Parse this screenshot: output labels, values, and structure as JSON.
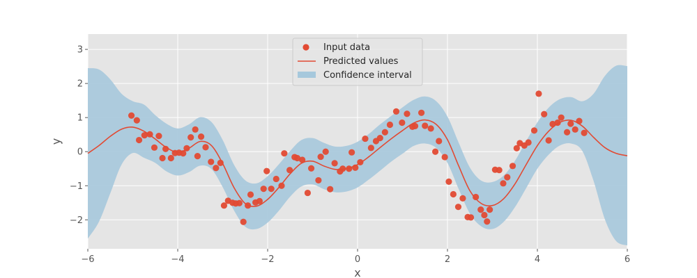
{
  "chart_data": {
    "type": "scatter",
    "title": "",
    "xlabel": "x",
    "ylabel": "y",
    "xlim": [
      -6,
      6
    ],
    "ylim": [
      -2.85,
      3.45
    ],
    "xticks": [
      -6,
      -4,
      -2,
      0,
      2,
      4,
      6
    ],
    "xtick_labels": [
      "−6",
      "−4",
      "−2",
      "0",
      "2",
      "4",
      "6"
    ],
    "yticks": [
      -2,
      -1,
      0,
      1,
      2,
      3
    ],
    "ytick_labels": [
      "−2",
      "−1",
      "0",
      "1",
      "2",
      "3"
    ],
    "grid": true,
    "legend_position": "top-center",
    "colors": {
      "background": "#e5e5e5",
      "grid": "#ffffff",
      "line": "#e24a33",
      "points": "#e24a33",
      "band": "#a6c8dc"
    },
    "series": [
      {
        "name": "Input data",
        "kind": "scatter",
        "x": [
          -5.03,
          -4.91,
          -4.86,
          -4.74,
          -4.62,
          -4.52,
          -4.42,
          -4.34,
          -4.27,
          -4.15,
          -4.06,
          -3.97,
          -3.88,
          -3.8,
          -3.71,
          -3.61,
          -3.56,
          -3.48,
          -3.38,
          -3.26,
          -3.15,
          -3.05,
          -2.97,
          -2.88,
          -2.78,
          -2.71,
          -2.63,
          -2.54,
          -2.44,
          -2.38,
          -2.27,
          -2.18,
          -2.09,
          -2.02,
          -1.92,
          -1.81,
          -1.69,
          -1.63,
          -1.51,
          -1.4,
          -1.34,
          -1.23,
          -1.11,
          -1.03,
          -0.87,
          -0.82,
          -0.71,
          -0.61,
          -0.51,
          -0.39,
          -0.33,
          -0.19,
          -0.13,
          -0.05,
          0.06,
          0.17,
          0.3,
          0.41,
          0.5,
          0.61,
          0.72,
          0.86,
          0.99,
          1.1,
          1.22,
          1.28,
          1.42,
          1.5,
          1.63,
          1.73,
          1.81,
          1.94,
          2.03,
          2.13,
          2.24,
          2.34,
          2.45,
          2.52,
          2.63,
          2.74,
          2.82,
          2.88,
          2.94,
          3.06,
          3.15,
          3.24,
          3.33,
          3.45,
          3.54,
          3.61,
          3.71,
          3.8,
          3.93,
          4.03,
          4.15,
          4.25,
          4.34,
          4.45,
          4.53,
          4.66,
          4.74,
          4.84,
          4.93,
          5.04
        ],
        "y": [
          1.06,
          0.92,
          0.34,
          0.48,
          0.51,
          0.12,
          0.46,
          -0.19,
          0.08,
          -0.19,
          -0.04,
          -0.03,
          -0.05,
          0.1,
          0.42,
          0.65,
          -0.13,
          0.44,
          0.13,
          -0.3,
          -0.48,
          -0.33,
          -1.58,
          -1.44,
          -1.5,
          -1.52,
          -1.51,
          -2.06,
          -1.58,
          -1.26,
          -1.49,
          -1.45,
          -1.09,
          -0.57,
          -1.09,
          -0.8,
          -1.0,
          -0.05,
          -0.54,
          -0.16,
          -0.19,
          -0.24,
          -1.21,
          -0.49,
          -0.84,
          -0.15,
          0.0,
          -1.1,
          -0.34,
          -0.58,
          -0.5,
          -0.5,
          -0.02,
          -0.47,
          -0.31,
          0.38,
          0.11,
          0.31,
          0.4,
          0.57,
          0.79,
          1.18,
          0.85,
          1.11,
          0.73,
          0.75,
          1.14,
          0.76,
          0.68,
          0.0,
          0.31,
          -0.16,
          -0.88,
          -1.25,
          -1.62,
          -1.37,
          -1.92,
          -1.93,
          -1.33,
          -1.7,
          -1.86,
          -2.05,
          -1.7,
          -0.53,
          -0.54,
          -0.93,
          -0.75,
          -0.42,
          0.1,
          0.25,
          0.18,
          0.27,
          0.62,
          1.7,
          1.1,
          0.33,
          0.81,
          0.85,
          1.0,
          0.57,
          0.82,
          0.65,
          0.9,
          0.55
        ]
      },
      {
        "name": "Predicted values",
        "kind": "line",
        "x": [
          -6.0,
          -5.75,
          -5.5,
          -5.25,
          -5.0,
          -4.75,
          -4.5,
          -4.25,
          -4.0,
          -3.75,
          -3.5,
          -3.25,
          -3.0,
          -2.75,
          -2.5,
          -2.25,
          -2.0,
          -1.75,
          -1.5,
          -1.25,
          -1.0,
          -0.75,
          -0.5,
          -0.25,
          0.0,
          0.25,
          0.5,
          0.75,
          1.0,
          1.25,
          1.5,
          1.75,
          2.0,
          2.25,
          2.5,
          2.75,
          3.0,
          3.25,
          3.5,
          3.75,
          4.0,
          4.25,
          4.5,
          4.75,
          5.0,
          5.25,
          5.5,
          5.75,
          6.0
        ],
        "y": [
          -0.05,
          0.18,
          0.45,
          0.66,
          0.72,
          0.6,
          0.37,
          0.12,
          -0.02,
          0.1,
          0.3,
          0.18,
          -0.35,
          -1.05,
          -1.52,
          -1.6,
          -1.4,
          -1.05,
          -0.65,
          -0.34,
          -0.28,
          -0.42,
          -0.52,
          -0.5,
          -0.38,
          -0.15,
          0.12,
          0.38,
          0.62,
          0.84,
          0.93,
          0.8,
          0.35,
          -0.42,
          -1.15,
          -1.52,
          -1.58,
          -1.38,
          -0.95,
          -0.38,
          0.18,
          0.6,
          0.86,
          0.92,
          0.75,
          0.42,
          0.12,
          -0.05,
          -0.12
        ]
      },
      {
        "name": "Confidence interval",
        "kind": "band",
        "x": [
          -6.0,
          -5.75,
          -5.5,
          -5.25,
          -5.0,
          -4.75,
          -4.5,
          -4.25,
          -4.0,
          -3.75,
          -3.5,
          -3.25,
          -3.0,
          -2.75,
          -2.5,
          -2.25,
          -2.0,
          -1.75,
          -1.5,
          -1.25,
          -1.0,
          -0.75,
          -0.5,
          -0.25,
          0.0,
          0.25,
          0.5,
          0.75,
          1.0,
          1.25,
          1.5,
          1.75,
          2.0,
          2.25,
          2.5,
          2.75,
          3.0,
          3.25,
          3.5,
          3.75,
          4.0,
          4.25,
          4.5,
          4.75,
          5.0,
          5.25,
          5.5,
          5.75,
          6.0
        ],
        "lower": [
          -2.55,
          -2.05,
          -1.22,
          -0.38,
          -0.04,
          -0.18,
          -0.33,
          -0.58,
          -0.7,
          -0.6,
          -0.41,
          -0.51,
          -1.04,
          -1.72,
          -2.2,
          -2.27,
          -2.08,
          -1.73,
          -1.32,
          -1.02,
          -0.96,
          -1.1,
          -1.19,
          -1.17,
          -1.05,
          -0.82,
          -0.56,
          -0.29,
          -0.06,
          0.17,
          0.24,
          0.11,
          -0.33,
          -1.1,
          -1.82,
          -2.19,
          -2.27,
          -2.06,
          -1.63,
          -1.07,
          -0.5,
          -0.09,
          0.18,
          0.24,
          0.02,
          -0.86,
          -1.98,
          -2.62,
          -2.75
        ],
        "upper": [
          2.45,
          2.41,
          2.12,
          1.7,
          1.48,
          1.38,
          1.07,
          0.82,
          0.68,
          0.8,
          1.01,
          0.87,
          0.34,
          -0.38,
          -0.84,
          -0.93,
          -0.72,
          -0.37,
          0.02,
          0.34,
          0.4,
          0.26,
          0.15,
          0.17,
          0.29,
          0.52,
          0.8,
          1.05,
          1.3,
          1.52,
          1.62,
          1.48,
          1.03,
          0.26,
          -0.47,
          -0.85,
          -0.89,
          -0.7,
          -0.27,
          0.31,
          0.86,
          1.29,
          1.54,
          1.6,
          1.48,
          1.7,
          2.22,
          2.52,
          2.51
        ]
      }
    ]
  }
}
